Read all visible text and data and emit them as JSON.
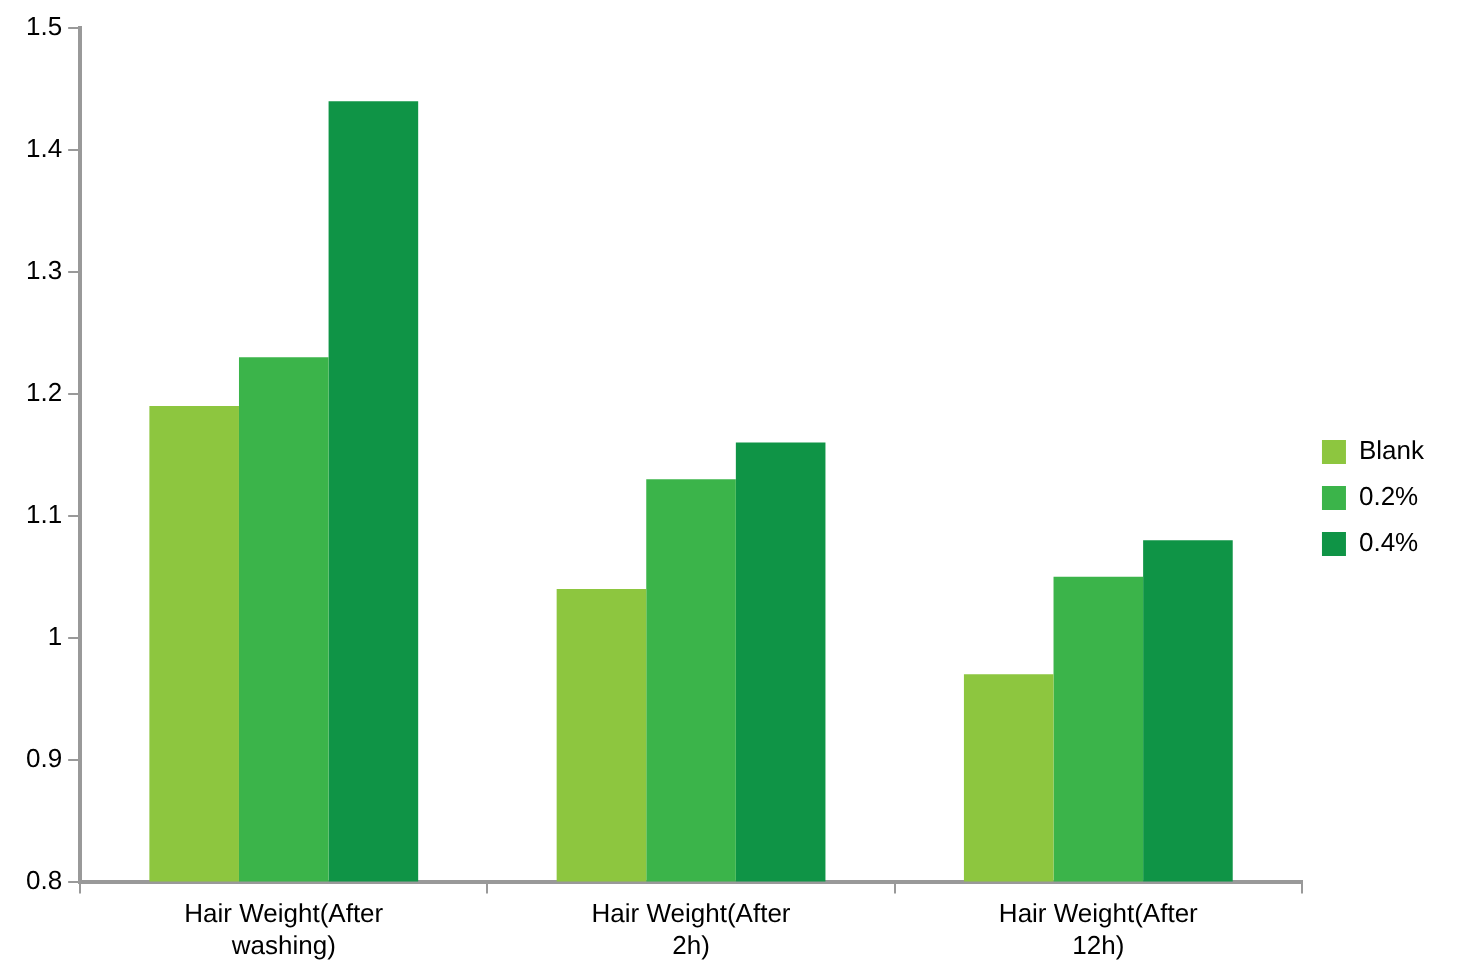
{
  "chart_data": {
    "type": "bar",
    "categories": [
      "Hair Weight(After washing)",
      "Hair Weight(After 2h)",
      "Hair Weight(After 12h)"
    ],
    "series": [
      {
        "name": "Blank",
        "color": "#8dc63f",
        "values": [
          1.19,
          1.04,
          0.97
        ]
      },
      {
        "name": "0.2%",
        "color": "#3bb44a",
        "values": [
          1.23,
          1.13,
          1.05
        ]
      },
      {
        "name": "0.4%",
        "color": "#0f9446",
        "values": [
          1.44,
          1.16,
          1.08
        ]
      }
    ],
    "ylim": [
      0.8,
      1.5
    ],
    "yticks": [
      {
        "value": 0.8,
        "label": "0.8"
      },
      {
        "value": 0.9,
        "label": "0.9"
      },
      {
        "value": 1,
        "label": "1"
      },
      {
        "value": 1.1,
        "label": "1.1"
      },
      {
        "value": 1.2,
        "label": "1.2"
      },
      {
        "value": 1.3,
        "label": "1.3"
      },
      {
        "value": 1.4,
        "label": "1.4"
      },
      {
        "value": 1.5,
        "label": "1.5"
      }
    ],
    "grid": false,
    "legend": "right"
  }
}
